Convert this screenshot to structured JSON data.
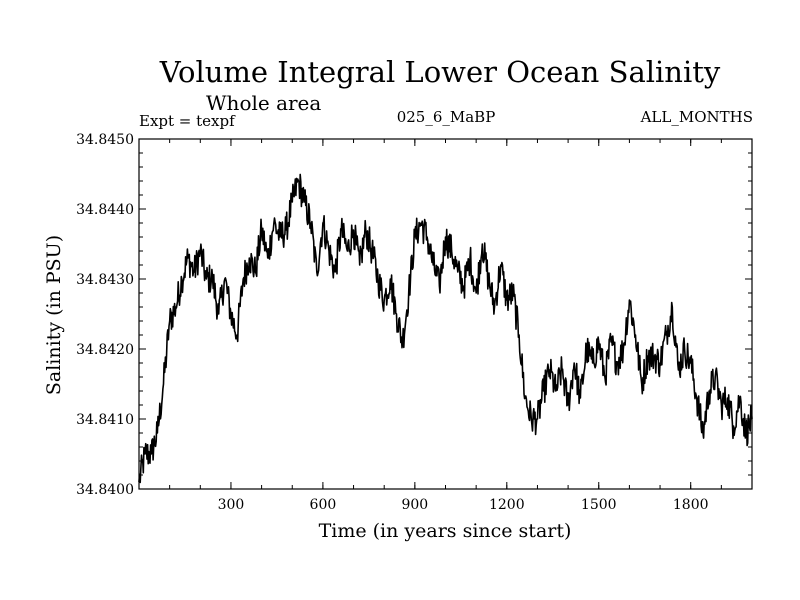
{
  "chart_data": {
    "type": "line",
    "title": "Volume Integral Lower Ocean Salinity",
    "subtitle": "Whole area",
    "experiment": "Expt = texpf",
    "run_label": "025_6_MaBP",
    "period_label": "ALL_MONTHS",
    "xlabel": "Time (in years since start)",
    "ylabel": "Salinity (in PSU)",
    "xlim": [
      0,
      2000
    ],
    "ylim": [
      34.84,
      34.845
    ],
    "x_ticks": [
      300,
      600,
      900,
      1200,
      1500,
      1800
    ],
    "x_tick_labels": [
      "300",
      "600",
      "900",
      "1200",
      "1500",
      "1800"
    ],
    "y_ticks": [
      34.84,
      34.841,
      34.842,
      34.843,
      34.844,
      34.845
    ],
    "y_tick_labels": [
      "34.8400",
      "34.8410",
      "34.8420",
      "34.8430",
      "34.8440",
      "34.8450"
    ],
    "series": [
      {
        "name": "Volume integral lower ocean salinity",
        "color": "#000000",
        "x": [
          0,
          20,
          40,
          60,
          80,
          100,
          120,
          140,
          160,
          180,
          200,
          220,
          240,
          260,
          280,
          300,
          320,
          340,
          360,
          380,
          400,
          420,
          440,
          460,
          480,
          500,
          520,
          540,
          560,
          580,
          600,
          620,
          640,
          660,
          680,
          700,
          720,
          740,
          760,
          780,
          800,
          820,
          840,
          860,
          880,
          900,
          920,
          940,
          960,
          980,
          1000,
          1020,
          1040,
          1060,
          1080,
          1100,
          1120,
          1140,
          1160,
          1180,
          1200,
          1220,
          1240,
          1260,
          1280,
          1300,
          1320,
          1340,
          1360,
          1380,
          1400,
          1420,
          1440,
          1460,
          1480,
          1500,
          1520,
          1540,
          1560,
          1580,
          1600,
          1620,
          1640,
          1660,
          1680,
          1700,
          1720,
          1740,
          1760,
          1780,
          1800,
          1820,
          1840,
          1860,
          1880,
          1900,
          1920,
          1940,
          1960,
          1980,
          2000
        ],
        "values": [
          34.8401,
          34.8405,
          34.8405,
          34.8408,
          34.8415,
          34.8424,
          34.8426,
          34.843,
          34.8433,
          34.8431,
          34.8434,
          34.843,
          34.843,
          34.8425,
          34.843,
          34.8425,
          34.8422,
          34.843,
          34.8433,
          34.8431,
          34.8437,
          34.8433,
          34.8438,
          34.8436,
          34.8437,
          34.8441,
          34.8444,
          34.8441,
          34.8438,
          34.8431,
          34.8438,
          34.8434,
          34.8431,
          34.8437,
          34.8434,
          34.8437,
          34.8432,
          34.8437,
          34.8434,
          34.843,
          34.8427,
          34.843,
          34.8425,
          34.8421,
          34.8428,
          34.8436,
          34.8438,
          34.8436,
          34.8432,
          34.8429,
          34.8436,
          34.8434,
          34.8431,
          34.8429,
          34.8433,
          34.8428,
          34.8435,
          34.843,
          34.8426,
          34.8432,
          34.8427,
          34.8428,
          34.8422,
          34.8413,
          34.841,
          34.841,
          34.8414,
          34.8417,
          34.8414,
          34.8417,
          34.8412,
          34.8418,
          34.8413,
          34.842,
          34.8418,
          34.8421,
          34.8416,
          34.8421,
          34.8418,
          34.842,
          34.8427,
          34.8422,
          34.8415,
          34.8419,
          34.8419,
          34.8418,
          34.8422,
          34.8426,
          34.8417,
          34.842,
          34.8418,
          34.8413,
          34.8408,
          34.8414,
          34.8416,
          34.8412,
          34.8413,
          34.8409,
          34.8413,
          34.8408,
          34.841
        ]
      }
    ]
  }
}
